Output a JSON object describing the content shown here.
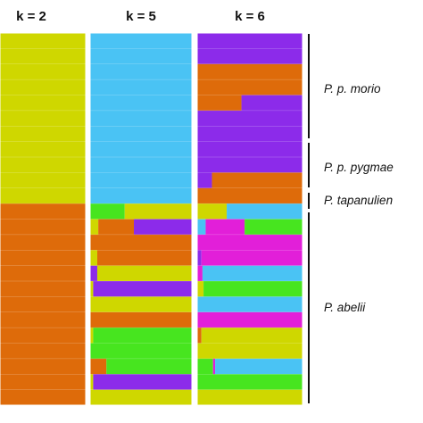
{
  "colors": {
    "yellow": "#cfd700",
    "orange": "#de6b0a",
    "blue": "#4ac3f4",
    "purple": "#8c2bea",
    "green": "#47e51f",
    "magenta": "#e21fd9"
  },
  "headers": {
    "k2": "k = 2",
    "k5": "k = 5",
    "k6": "k = 6"
  },
  "populations": [
    {
      "label": "P. p. morio",
      "rows": [
        0,
        7
      ]
    },
    {
      "label": "P. p. pygmae",
      "rows": [
        8,
        10
      ]
    },
    {
      "label": "P. tapanulien",
      "rows": [
        11,
        11
      ]
    },
    {
      "label": "P. abelii",
      "rows": [
        12,
        23
      ]
    }
  ],
  "chart_data": {
    "type": "bar",
    "description_k2": "rows",
    "panels": [
      {
        "k": 2,
        "rows": [
          [
            [
              "yellow",
              1
            ]
          ],
          [
            [
              "yellow",
              1
            ]
          ],
          [
            [
              "yellow",
              1
            ]
          ],
          [
            [
              "yellow",
              1
            ]
          ],
          [
            [
              "yellow",
              1
            ]
          ],
          [
            [
              "yellow",
              1
            ]
          ],
          [
            [
              "yellow",
              1
            ]
          ],
          [
            [
              "yellow",
              1
            ]
          ],
          [
            [
              "yellow",
              1
            ]
          ],
          [
            [
              "yellow",
              1
            ]
          ],
          [
            [
              "yellow",
              1
            ]
          ],
          [
            [
              "orange",
              1
            ]
          ],
          [
            [
              "orange",
              1
            ]
          ],
          [
            [
              "orange",
              1
            ]
          ],
          [
            [
              "orange",
              1
            ]
          ],
          [
            [
              "orange",
              1
            ]
          ],
          [
            [
              "orange",
              1
            ]
          ],
          [
            [
              "orange",
              1
            ]
          ],
          [
            [
              "orange",
              1
            ]
          ],
          [
            [
              "orange",
              1
            ]
          ],
          [
            [
              "orange",
              1
            ]
          ],
          [
            [
              "orange",
              1
            ]
          ],
          [
            [
              "orange",
              1
            ]
          ],
          [
            [
              "orange",
              1
            ]
          ]
        ]
      },
      {
        "k": 5,
        "rows": [
          [
            [
              "blue",
              1
            ]
          ],
          [
            [
              "blue",
              1
            ]
          ],
          [
            [
              "blue",
              1
            ]
          ],
          [
            [
              "blue",
              1
            ]
          ],
          [
            [
              "blue",
              1
            ]
          ],
          [
            [
              "blue",
              1
            ]
          ],
          [
            [
              "blue",
              1
            ]
          ],
          [
            [
              "blue",
              1
            ]
          ],
          [
            [
              "blue",
              1
            ]
          ],
          [
            [
              "blue",
              1
            ]
          ],
          [
            [
              "blue",
              1
            ]
          ],
          [
            [
              "green",
              0.34
            ],
            [
              "yellow",
              0.66
            ]
          ],
          [
            [
              "yellow",
              0.08
            ],
            [
              "orange",
              0.35
            ],
            [
              "purple",
              0.57
            ]
          ],
          [
            [
              "orange",
              1
            ]
          ],
          [
            [
              "yellow",
              0.07
            ],
            [
              "orange",
              0.93
            ]
          ],
          [
            [
              "purple",
              0.07
            ],
            [
              "yellow",
              0.93
            ]
          ],
          [
            [
              "yellow",
              0.03
            ],
            [
              "purple",
              0.97
            ]
          ],
          [
            [
              "yellow",
              1
            ]
          ],
          [
            [
              "orange",
              1
            ]
          ],
          [
            [
              "yellow",
              0.03
            ],
            [
              "green",
              0.97
            ]
          ],
          [
            [
              "green",
              1
            ]
          ],
          [
            [
              "orange",
              0.16
            ],
            [
              "green",
              0.84
            ]
          ],
          [
            [
              "yellow",
              0.03
            ],
            [
              "purple",
              0.97
            ]
          ],
          [
            [
              "yellow",
              1
            ]
          ]
        ]
      },
      {
        "k": 6,
        "rows": [
          [
            [
              "purple",
              1
            ]
          ],
          [
            [
              "purple",
              1
            ]
          ],
          [
            [
              "orange",
              1
            ]
          ],
          [
            [
              "orange",
              1
            ]
          ],
          [
            [
              "orange",
              0.42
            ],
            [
              "purple",
              0.58
            ]
          ],
          [
            [
              "purple",
              1
            ]
          ],
          [
            [
              "purple",
              1
            ]
          ],
          [
            [
              "purple",
              1
            ]
          ],
          [
            [
              "purple",
              1
            ]
          ],
          [
            [
              "purple",
              0.14
            ],
            [
              "orange",
              0.86
            ]
          ],
          [
            [
              "orange",
              1
            ]
          ],
          [
            [
              "yellow",
              0.28
            ],
            [
              "blue",
              0.72
            ]
          ],
          [
            [
              "blue",
              0.08
            ],
            [
              "magenta",
              0.37
            ],
            [
              "green",
              0.55
            ]
          ],
          [
            [
              "magenta",
              1
            ]
          ],
          [
            [
              "purple",
              0.04
            ],
            [
              "magenta",
              0.96
            ]
          ],
          [
            [
              "magenta",
              0.05
            ],
            [
              "blue",
              0.95
            ]
          ],
          [
            [
              "yellow",
              0.06
            ],
            [
              "green",
              0.94
            ]
          ],
          [
            [
              "blue",
              1
            ]
          ],
          [
            [
              "magenta",
              1
            ]
          ],
          [
            [
              "orange",
              0.04
            ],
            [
              "yellow",
              0.96
            ]
          ],
          [
            [
              "yellow",
              1
            ]
          ],
          [
            [
              "green",
              0.15
            ],
            [
              "magenta",
              0.02
            ],
            [
              "blue",
              0.83
            ]
          ],
          [
            [
              "green",
              1
            ]
          ],
          [
            [
              "yellow",
              1
            ]
          ]
        ]
      }
    ]
  }
}
